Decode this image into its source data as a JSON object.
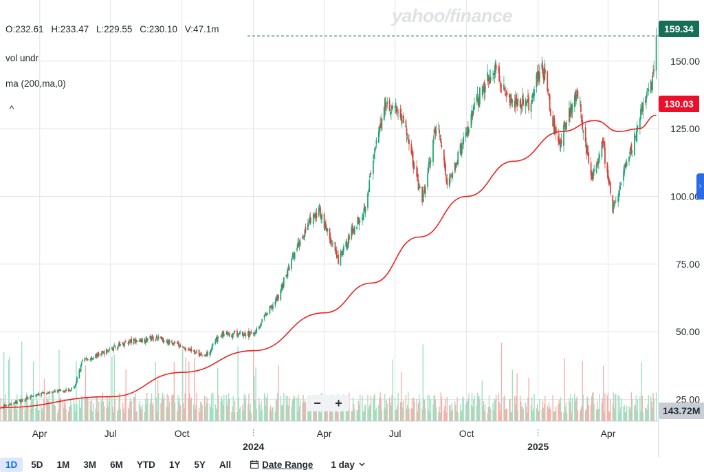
{
  "watermark": "yahoo/finance",
  "ohlc": {
    "open": "O:232.61",
    "high": "H:233.47",
    "low": "L:229.55",
    "close": "C:230.10",
    "volume": "V:47.1m"
  },
  "indicators": {
    "volume": "vol undr",
    "ma": "ma (200,ma,0)"
  },
  "collapse_glyph": "^",
  "zoom": {
    "minus": "−",
    "plus": "+"
  },
  "price_tags": {
    "last": "159.34",
    "ma": "130.03",
    "volume": "143.72M"
  },
  "colors": {
    "up": "#1ea672",
    "down": "#d6453d",
    "ma_line": "#ee1f1f",
    "last_tag": "#166e57",
    "ma_tag": "#eb0f29",
    "up_vol": "#9fe0c3",
    "down_vol": "#f3b1ab"
  },
  "range_buttons": [
    "1D",
    "5D",
    "1M",
    "3M",
    "6M",
    "YTD",
    "1Y",
    "5Y",
    "All"
  ],
  "active_range": "1D",
  "date_range_label": "Date Range",
  "interval_label": "1 day",
  "icons": {
    "calendar": "calendar-icon",
    "chevron": "chevron-down-icon",
    "side": "chevron-right-icon"
  },
  "chart_data": {
    "type": "candlestick",
    "y_ticks": [
      "25.00",
      "50.00",
      "75.00",
      "100.00",
      "125.00",
      "150.00"
    ],
    "x_ticks": [
      {
        "label": "Apr",
        "date": "2023-04-01"
      },
      {
        "label": "Jul",
        "date": "2023-07-01"
      },
      {
        "label": "Oct",
        "date": "2023-10-01"
      },
      {
        "label": "2024",
        "date": "2024-01-01",
        "year": true
      },
      {
        "label": "Apr",
        "date": "2024-04-01"
      },
      {
        "label": "Jul",
        "date": "2024-07-01"
      },
      {
        "label": "Oct",
        "date": "2024-10-01"
      },
      {
        "label": "2025",
        "date": "2025-01-01",
        "year": true
      },
      {
        "label": "Apr",
        "date": "2025-04-01"
      }
    ],
    "ylim": [
      17,
      168
    ],
    "xlim": [
      "2023-02-09",
      "2025-06-05"
    ],
    "close_series": [
      {
        "date": "2023-02-10",
        "close": 22
      },
      {
        "date": "2023-03-01",
        "close": 24
      },
      {
        "date": "2023-04-01",
        "close": 27
      },
      {
        "date": "2023-05-15",
        "close": 29
      },
      {
        "date": "2023-05-26",
        "close": 39
      },
      {
        "date": "2023-06-20",
        "close": 42
      },
      {
        "date": "2023-07-20",
        "close": 46
      },
      {
        "date": "2023-08-30",
        "close": 48
      },
      {
        "date": "2023-10-05",
        "close": 44
      },
      {
        "date": "2023-10-31",
        "close": 41
      },
      {
        "date": "2023-11-20",
        "close": 49
      },
      {
        "date": "2023-12-31",
        "close": 49
      },
      {
        "date": "2024-01-31",
        "close": 62
      },
      {
        "date": "2024-02-23",
        "close": 79
      },
      {
        "date": "2024-03-08",
        "close": 88
      },
      {
        "date": "2024-03-26",
        "close": 95
      },
      {
        "date": "2024-04-19",
        "close": 76
      },
      {
        "date": "2024-05-10",
        "close": 89
      },
      {
        "date": "2024-05-22",
        "close": 95
      },
      {
        "date": "2024-06-18",
        "close": 135
      },
      {
        "date": "2024-07-10",
        "close": 130
      },
      {
        "date": "2024-08-05",
        "close": 98
      },
      {
        "date": "2024-08-25",
        "close": 128
      },
      {
        "date": "2024-09-06",
        "close": 104
      },
      {
        "date": "2024-09-30",
        "close": 122
      },
      {
        "date": "2024-10-15",
        "close": 136
      },
      {
        "date": "2024-11-07",
        "close": 148
      },
      {
        "date": "2024-11-25",
        "close": 136
      },
      {
        "date": "2024-12-20",
        "close": 134
      },
      {
        "date": "2025-01-06",
        "close": 149
      },
      {
        "date": "2025-01-27",
        "close": 118
      },
      {
        "date": "2025-02-20",
        "close": 140
      },
      {
        "date": "2025-03-10",
        "close": 106
      },
      {
        "date": "2025-03-25",
        "close": 120
      },
      {
        "date": "2025-04-07",
        "close": 95
      },
      {
        "date": "2025-04-25",
        "close": 111
      },
      {
        "date": "2025-05-12",
        "close": 129
      },
      {
        "date": "2025-05-28",
        "close": 142
      },
      {
        "date": "2025-06-02",
        "close": 159
      }
    ],
    "ma_series": [
      {
        "date": "2023-02-10",
        "close": 22
      },
      {
        "date": "2023-07-01",
        "close": 26
      },
      {
        "date": "2023-10-01",
        "close": 35
      },
      {
        "date": "2024-01-01",
        "close": 43
      },
      {
        "date": "2024-04-01",
        "close": 57
      },
      {
        "date": "2024-06-01",
        "close": 68
      },
      {
        "date": "2024-08-01",
        "close": 85
      },
      {
        "date": "2024-10-01",
        "close": 100
      },
      {
        "date": "2024-12-01",
        "close": 113
      },
      {
        "date": "2025-02-01",
        "close": 124
      },
      {
        "date": "2025-03-15",
        "close": 128
      },
      {
        "date": "2025-04-15",
        "close": 124
      },
      {
        "date": "2025-05-10",
        "close": 125
      },
      {
        "date": "2025-06-02",
        "close": 130
      }
    ],
    "last_price": 159.34,
    "ma_value": 130.03,
    "last_volume": "143.72M"
  }
}
